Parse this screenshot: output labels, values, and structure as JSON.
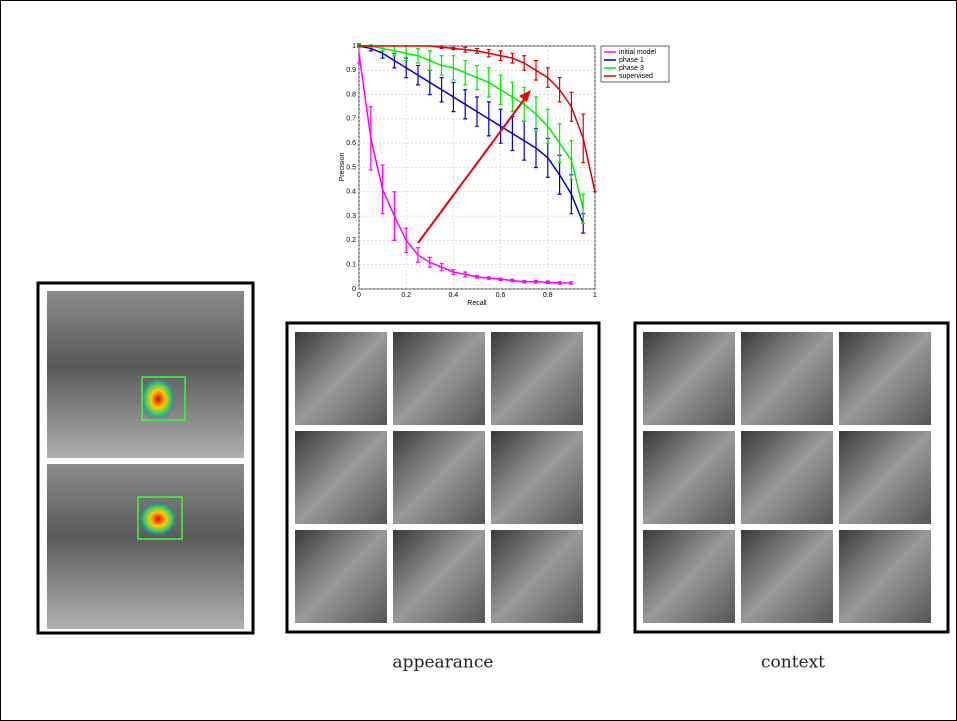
{
  "chart_data": {
    "type": "line",
    "x_label": "Recall",
    "y_label": "Precision",
    "xlim": [
      0,
      1
    ],
    "ylim": [
      0,
      1
    ],
    "xticks": [
      0,
      0.2,
      0.4,
      0.6,
      0.8,
      1
    ],
    "yticks": [
      0,
      0.1,
      0.2,
      0.3,
      0.4,
      0.5,
      0.6,
      0.7,
      0.8,
      0.9,
      1
    ],
    "grid": true,
    "legend": "right",
    "series": [
      {
        "name": "initial model",
        "color": "#ff00ff",
        "x": [
          0,
          0.05,
          0.1,
          0.15,
          0.2,
          0.25,
          0.3,
          0.35,
          0.4,
          0.45,
          0.5,
          0.55,
          0.6,
          0.65,
          0.7,
          0.75,
          0.8,
          0.85,
          0.9
        ],
        "values": [
          0.97,
          0.62,
          0.41,
          0.3,
          0.2,
          0.14,
          0.11,
          0.09,
          0.07,
          0.06,
          0.05,
          0.045,
          0.04,
          0.035,
          0.03,
          0.03,
          0.028,
          0.025,
          0.025
        ],
        "errors": [
          0.04,
          0.13,
          0.1,
          0.1,
          0.05,
          0.03,
          0.02,
          0.015,
          0.01,
          0.01,
          0.005,
          0.005,
          0.005,
          0.005,
          0.005,
          0.005,
          0.005,
          0.005,
          0.005
        ]
      },
      {
        "name": "phase 1",
        "color": "#0000cc",
        "x": [
          0,
          0.05,
          0.1,
          0.15,
          0.2,
          0.25,
          0.3,
          0.35,
          0.4,
          0.45,
          0.5,
          0.55,
          0.6,
          0.65,
          0.7,
          0.75,
          0.8,
          0.85,
          0.9,
          0.95
        ],
        "values": [
          1,
          0.99,
          0.97,
          0.94,
          0.91,
          0.88,
          0.85,
          0.82,
          0.79,
          0.76,
          0.73,
          0.7,
          0.67,
          0.64,
          0.61,
          0.58,
          0.54,
          0.47,
          0.39,
          0.27
        ],
        "errors": [
          0.005,
          0.01,
          0.02,
          0.03,
          0.04,
          0.04,
          0.05,
          0.05,
          0.06,
          0.06,
          0.06,
          0.07,
          0.07,
          0.07,
          0.08,
          0.08,
          0.08,
          0.08,
          0.08,
          0.04
        ]
      },
      {
        "name": "phase 3",
        "color": "#00ee00",
        "x": [
          0,
          0.05,
          0.1,
          0.15,
          0.2,
          0.25,
          0.3,
          0.35,
          0.4,
          0.45,
          0.5,
          0.55,
          0.6,
          0.65,
          0.7,
          0.75,
          0.8,
          0.85,
          0.9,
          0.95
        ],
        "values": [
          1,
          1,
          0.99,
          0.98,
          0.97,
          0.96,
          0.94,
          0.92,
          0.91,
          0.89,
          0.87,
          0.85,
          0.82,
          0.79,
          0.76,
          0.72,
          0.67,
          0.6,
          0.53,
          0.33
        ],
        "errors": [
          0.005,
          0.005,
          0.01,
          0.02,
          0.03,
          0.03,
          0.04,
          0.04,
          0.05,
          0.05,
          0.05,
          0.06,
          0.06,
          0.06,
          0.07,
          0.07,
          0.07,
          0.08,
          0.08,
          0.06
        ]
      },
      {
        "name": "supervised",
        "color": "#dd0000",
        "x": [
          0,
          0.05,
          0.1,
          0.15,
          0.2,
          0.25,
          0.3,
          0.35,
          0.4,
          0.45,
          0.5,
          0.55,
          0.6,
          0.65,
          0.7,
          0.75,
          0.8,
          0.85,
          0.9,
          0.95,
          1
        ],
        "values": [
          1,
          1,
          1,
          1,
          1,
          1,
          1,
          0.995,
          0.99,
          0.985,
          0.98,
          0.97,
          0.96,
          0.95,
          0.93,
          0.9,
          0.87,
          0.82,
          0.75,
          0.62,
          0.4
        ],
        "errors": [
          0,
          0,
          0,
          0,
          0,
          0,
          0,
          0.005,
          0.005,
          0.01,
          0.01,
          0.015,
          0.02,
          0.02,
          0.03,
          0.04,
          0.04,
          0.05,
          0.06,
          0.1,
          0
        ]
      }
    ]
  },
  "captions": [
    "appearance",
    "context"
  ]
}
